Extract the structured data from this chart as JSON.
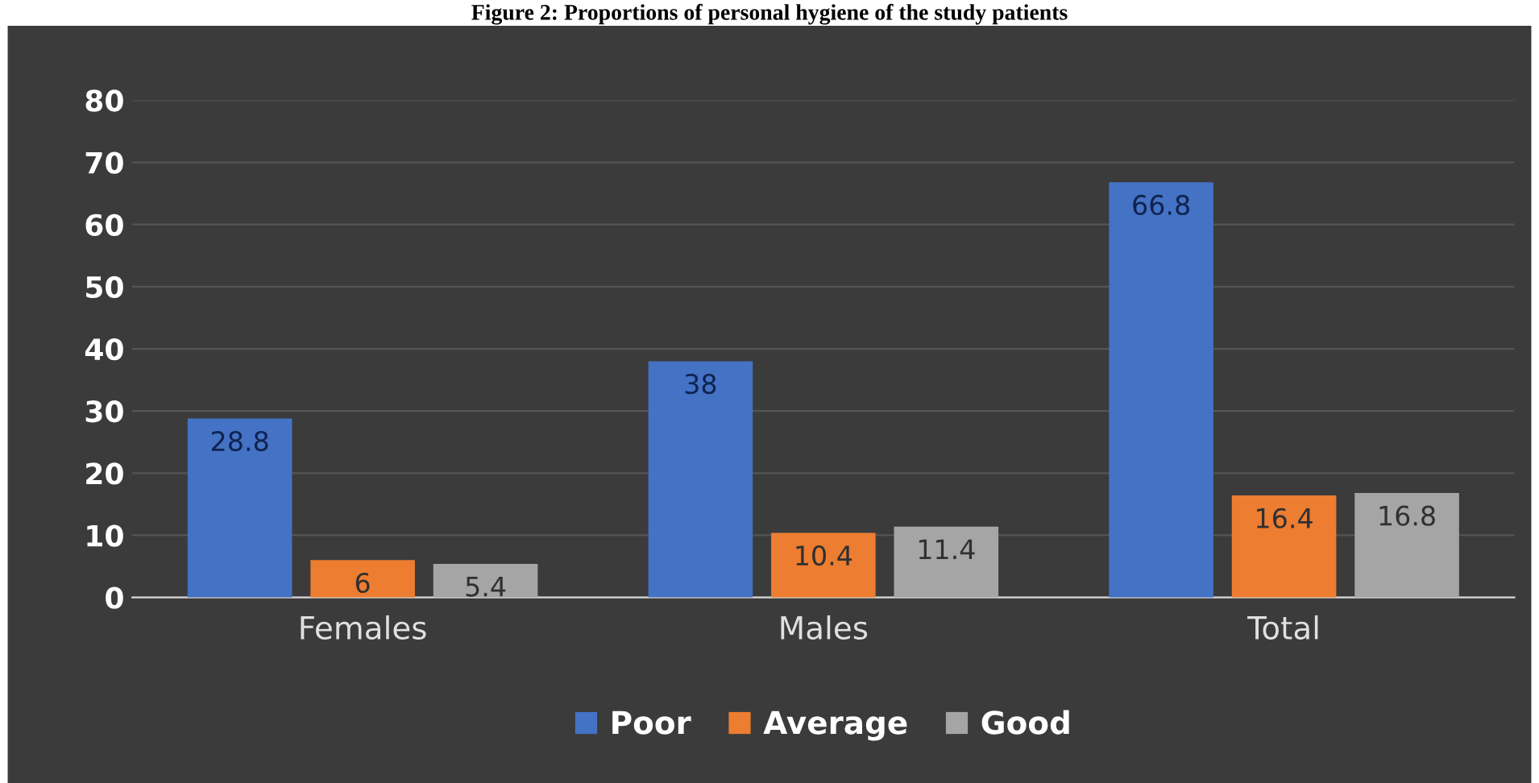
{
  "chart_data": {
    "type": "bar",
    "title": "Figure 2: Proportions of personal hygiene of the study patients",
    "categories": [
      "Females",
      "Males",
      "Total"
    ],
    "series": [
      {
        "name": "Poor",
        "color": "#4472c4",
        "values": [
          28.8,
          38,
          66.8
        ]
      },
      {
        "name": "Average",
        "color": "#ed7d31",
        "values": [
          6,
          10.4,
          16.4
        ]
      },
      {
        "name": "Good",
        "color": "#a5a5a5",
        "values": [
          5.4,
          11.4,
          16.8
        ]
      }
    ],
    "ylim": [
      0,
      80
    ],
    "yticks": [
      0,
      10,
      20,
      30,
      40,
      50,
      60,
      70,
      80
    ],
    "grid": "y",
    "legend": "bottom",
    "data_labels": true
  }
}
